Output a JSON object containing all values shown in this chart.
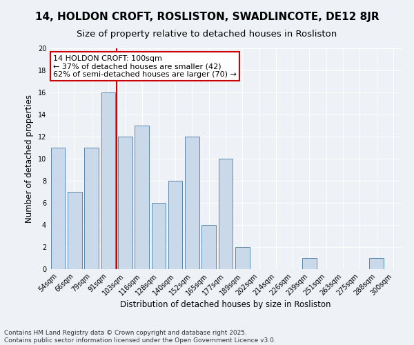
{
  "title": "14, HOLDON CROFT, ROSLISTON, SWADLINCOTE, DE12 8JR",
  "subtitle": "Size of property relative to detached houses in Rosliston",
  "xlabel": "Distribution of detached houses by size in Rosliston",
  "ylabel": "Number of detached properties",
  "categories": [
    "54sqm",
    "66sqm",
    "79sqm",
    "91sqm",
    "103sqm",
    "116sqm",
    "128sqm",
    "140sqm",
    "152sqm",
    "165sqm",
    "177sqm",
    "189sqm",
    "202sqm",
    "214sqm",
    "226sqm",
    "239sqm",
    "251sqm",
    "263sqm",
    "275sqm",
    "288sqm",
    "300sqm"
  ],
  "values": [
    11,
    7,
    11,
    16,
    12,
    13,
    6,
    8,
    12,
    4,
    10,
    2,
    0,
    0,
    0,
    1,
    0,
    0,
    0,
    1,
    0
  ],
  "bar_color": "#c9d9ea",
  "bar_edge_color": "#5a87b0",
  "vline_x_index": 4,
  "annotation_title": "14 HOLDON CROFT: 100sqm",
  "annotation_line1": "← 37% of detached houses are smaller (42)",
  "annotation_line2": "62% of semi-detached houses are larger (70) →",
  "annotation_box_color": "#ffffff",
  "annotation_box_edge_color": "#cc0000",
  "vline_color": "#cc0000",
  "ylim": [
    0,
    20
  ],
  "yticks": [
    0,
    2,
    4,
    6,
    8,
    10,
    12,
    14,
    16,
    18,
    20
  ],
  "footer_line1": "Contains HM Land Registry data © Crown copyright and database right 2025.",
  "footer_line2": "Contains public sector information licensed under the Open Government Licence v3.0.",
  "background_color": "#eef2f7",
  "grid_color": "#ffffff",
  "title_fontsize": 11,
  "subtitle_fontsize": 9.5,
  "axis_label_fontsize": 8.5,
  "tick_fontsize": 7,
  "annotation_fontsize": 8,
  "footer_fontsize": 6.5
}
